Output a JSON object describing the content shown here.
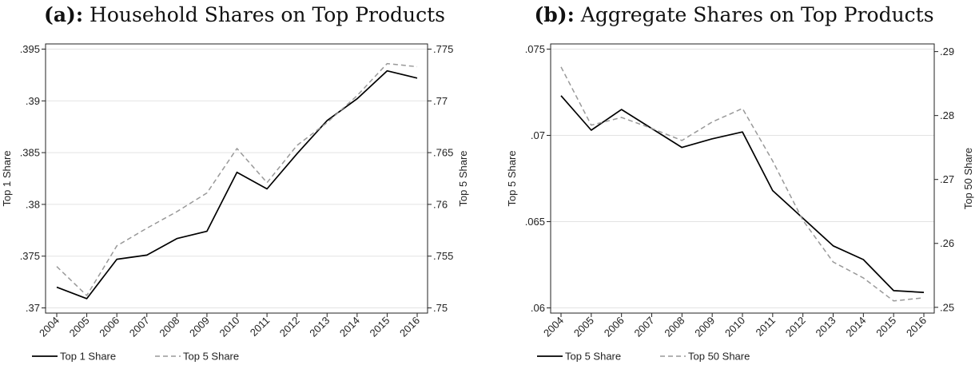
{
  "chart_data": [
    {
      "type": "line",
      "title_tag": "(a):",
      "title": "Household Shares on Top Products",
      "x": [
        "2004",
        "2005",
        "2006",
        "2007",
        "2008",
        "2009",
        "2010",
        "2011",
        "2012",
        "2013",
        "2014",
        "2015",
        "2016"
      ],
      "ylabel": "Top 1 Share",
      "y2label": "Top 5 Share",
      "ylim": [
        0.3695,
        0.3955
      ],
      "y2lim": [
        0.7495,
        0.7755
      ],
      "yticks": [
        0.37,
        0.375,
        0.38,
        0.385,
        0.39,
        0.395
      ],
      "yticklabels": [
        ".37",
        ".375",
        ".38",
        ".385",
        ".39",
        ".395"
      ],
      "y2ticks": [
        0.75,
        0.755,
        0.76,
        0.765,
        0.77,
        0.775
      ],
      "y2ticklabels": [
        ".75",
        ".755",
        ".76",
        ".765",
        ".77",
        ".775"
      ],
      "grid": true,
      "legend": "bottom-left",
      "series": [
        {
          "name": "Top 1 Share",
          "axis": "left",
          "style": "solid",
          "color": "#000000",
          "values": [
            0.372,
            0.3709,
            0.3747,
            0.3751,
            0.3767,
            0.3774,
            0.3831,
            0.3815,
            0.3849,
            0.3881,
            0.3902,
            0.3929,
            0.3922
          ]
        },
        {
          "name": "Top 5 Share",
          "axis": "right",
          "style": "dashed",
          "color": "#999999",
          "values": [
            0.754,
            0.7512,
            0.756,
            0.7577,
            0.7593,
            0.7611,
            0.7654,
            0.7621,
            0.7657,
            0.7679,
            0.7705,
            0.7736,
            0.7733
          ]
        }
      ]
    },
    {
      "type": "line",
      "title_tag": "(b):",
      "title": "Aggregate Shares on Top Products",
      "x": [
        "2004",
        "2005",
        "2006",
        "2007",
        "2008",
        "2009",
        "2010",
        "2011",
        "2012",
        "2013",
        "2014",
        "2015",
        "2016"
      ],
      "ylabel": "Top 5 Share",
      "y2label": "Top 50 Share",
      "ylim": [
        0.0597,
        0.0753
      ],
      "y2lim": [
        0.2491,
        0.2912
      ],
      "yticks": [
        0.06,
        0.065,
        0.07,
        0.075
      ],
      "yticklabels": [
        ".06",
        ".065",
        ".07",
        ".075"
      ],
      "y2ticks": [
        0.25,
        0.26,
        0.27,
        0.28,
        0.29
      ],
      "y2ticklabels": [
        ".25",
        ".26",
        ".27",
        ".28",
        ".29"
      ],
      "grid": true,
      "legend": "bottom-left",
      "series": [
        {
          "name": "Top 5 Share",
          "axis": "left",
          "style": "solid",
          "color": "#000000",
          "values": [
            0.0723,
            0.0703,
            0.0715,
            0.0704,
            0.0693,
            0.0698,
            0.0702,
            0.0668,
            0.0652,
            0.0636,
            0.0628,
            0.061,
            0.0609
          ]
        },
        {
          "name": "Top 50 Share",
          "axis": "right",
          "style": "dashed",
          "color": "#999999",
          "values": [
            0.2876,
            0.2785,
            0.2797,
            0.278,
            0.2761,
            0.279,
            0.2811,
            0.2729,
            0.2636,
            0.2571,
            0.2546,
            0.251,
            0.2515
          ]
        }
      ]
    }
  ]
}
